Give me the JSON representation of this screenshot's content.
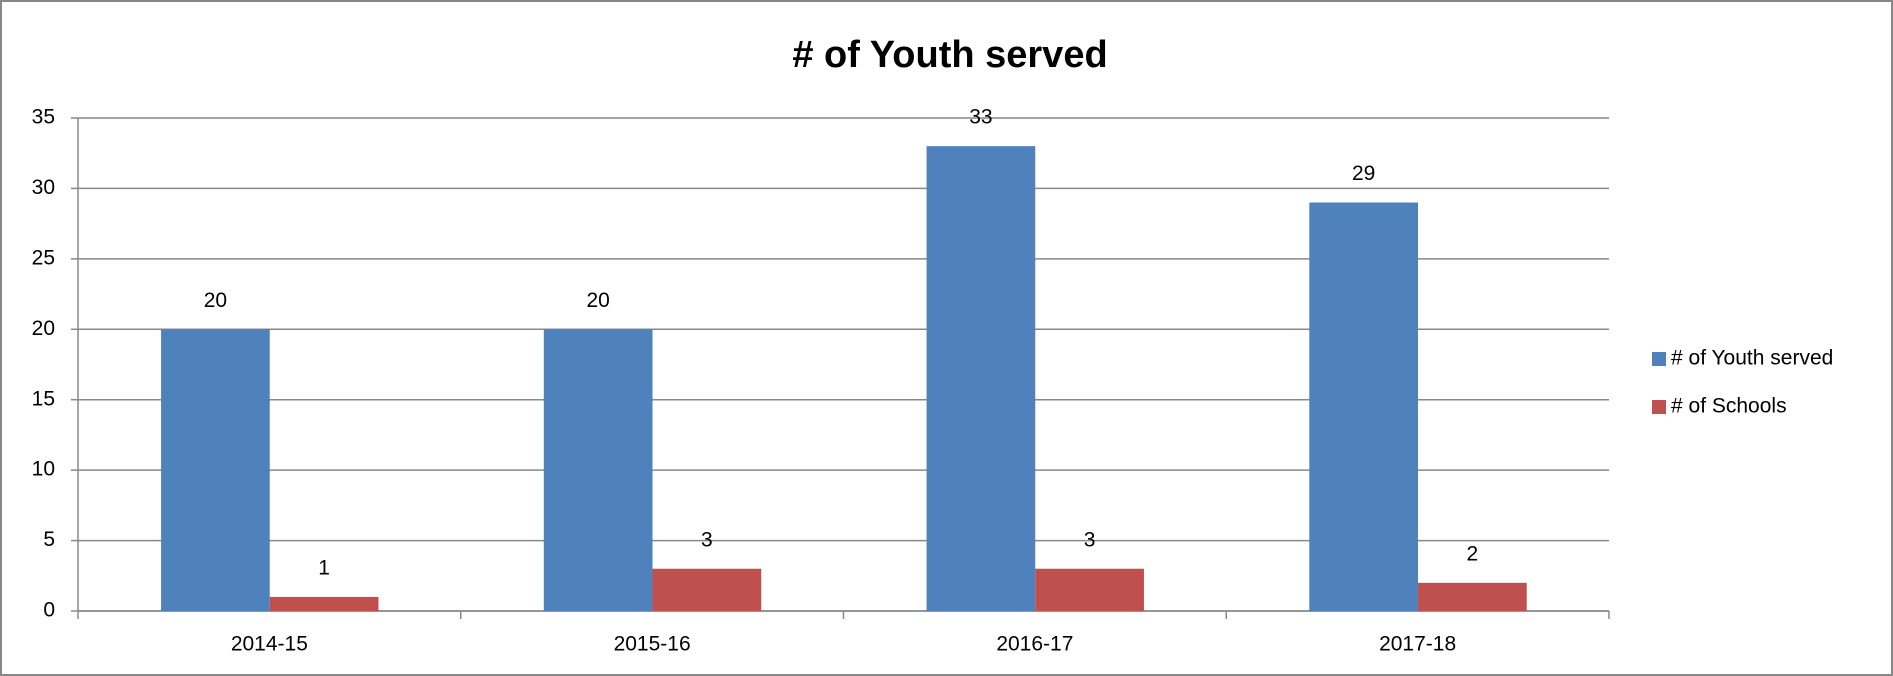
{
  "chart_data": {
    "type": "bar",
    "title": "# of Youth served",
    "categories": [
      "2014-15",
      "2015-16",
      "2016-17",
      "2017-18"
    ],
    "series": [
      {
        "name": "# of Youth served",
        "color": "#4f81bd",
        "values": [
          20,
          20,
          33,
          29
        ]
      },
      {
        "name": "# of Schools",
        "color": "#c0504d",
        "values": [
          1,
          3,
          3,
          2
        ]
      }
    ],
    "ylim": [
      0,
      35
    ],
    "yticks": [
      0,
      5,
      10,
      15,
      20,
      25,
      30,
      35
    ],
    "grid": true,
    "legend": "right"
  }
}
